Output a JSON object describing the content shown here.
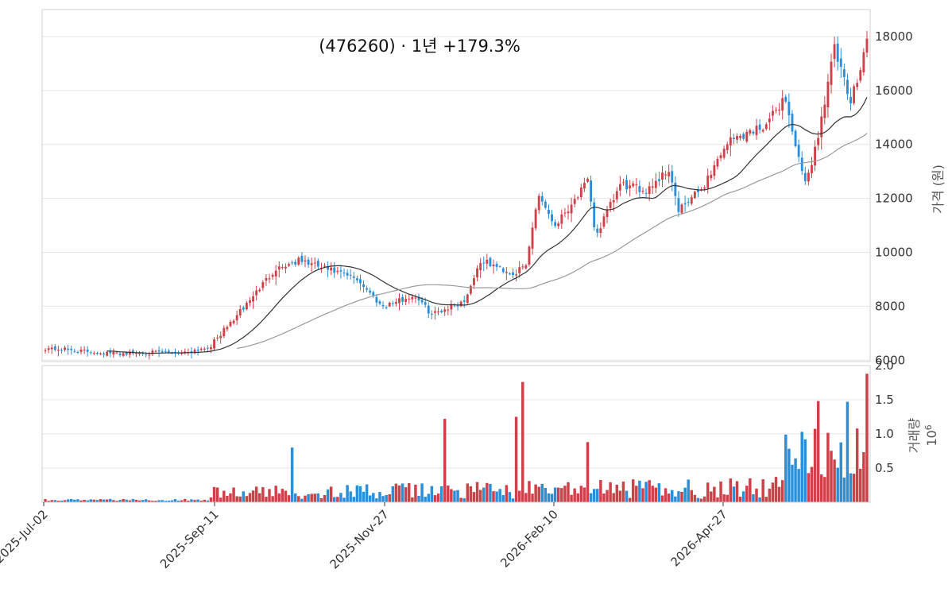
{
  "chart_data": {
    "type": "candlestick",
    "title": "(476260)  ·  1년 +179.3%",
    "x_tick_labels": [
      "2025-Jul-02",
      "2025-Sep-11",
      "2025-Nov-27",
      "2026-Feb-10",
      "2026-Apr-27"
    ],
    "price_panel": {
      "ylabel": "가격 (원)",
      "ylim": [
        5950,
        19000
      ],
      "yticks": [
        6000,
        8000,
        10000,
        12000,
        14000,
        16000,
        18000
      ],
      "grid": true,
      "up_color": "#d04048",
      "down_color": "#2a8fd8",
      "ma_short_color": "#333333",
      "ma_long_color": "#999999",
      "approx_close_trajectory": [
        {
          "t": 0.0,
          "close": 6450
        },
        {
          "t": 0.08,
          "close": 6250
        },
        {
          "t": 0.17,
          "close": 6300
        },
        {
          "t": 0.2,
          "close": 6500
        },
        {
          "t": 0.24,
          "close": 7900
        },
        {
          "t": 0.28,
          "close": 9400
        },
        {
          "t": 0.31,
          "close": 9700
        },
        {
          "t": 0.38,
          "close": 9000
        },
        {
          "t": 0.41,
          "close": 8000
        },
        {
          "t": 0.45,
          "close": 8400
        },
        {
          "t": 0.47,
          "close": 7700
        },
        {
          "t": 0.51,
          "close": 8200
        },
        {
          "t": 0.53,
          "close": 9700
        },
        {
          "t": 0.57,
          "close": 9200
        },
        {
          "t": 0.585,
          "close": 9500
        },
        {
          "t": 0.6,
          "close": 12200
        },
        {
          "t": 0.62,
          "close": 11000
        },
        {
          "t": 0.66,
          "close": 12600
        },
        {
          "t": 0.67,
          "close": 10600
        },
        {
          "t": 0.7,
          "close": 12500
        },
        {
          "t": 0.73,
          "close": 12300
        },
        {
          "t": 0.76,
          "close": 13100
        },
        {
          "t": 0.77,
          "close": 11500
        },
        {
          "t": 0.8,
          "close": 12400
        },
        {
          "t": 0.83,
          "close": 14100
        },
        {
          "t": 0.86,
          "close": 14500
        },
        {
          "t": 0.88,
          "close": 14800
        },
        {
          "t": 0.9,
          "close": 15800
        },
        {
          "t": 0.92,
          "close": 13000
        },
        {
          "t": 0.925,
          "close": 12500
        },
        {
          "t": 0.94,
          "close": 14200
        },
        {
          "t": 0.96,
          "close": 17600
        },
        {
          "t": 0.98,
          "close": 15500
        },
        {
          "t": 1.0,
          "close": 17900
        }
      ]
    },
    "volume_panel": {
      "ylabel": "거래량",
      "scale_label": "10",
      "scale_exponent": "6",
      "ylim": [
        0,
        2.0
      ],
      "yticks": [
        0.5,
        1.0,
        1.5,
        2.0
      ],
      "ytick_labels": [
        "0.5",
        "1.0",
        "1.5",
        "2.0"
      ],
      "unit_multiplier": 1000000,
      "spikes": [
        {
          "t": 0.3,
          "value": 0.8
        },
        {
          "t": 0.485,
          "value": 1.22
        },
        {
          "t": 0.575,
          "value": 1.25
        },
        {
          "t": 0.58,
          "value": 1.76
        },
        {
          "t": 0.66,
          "value": 0.88
        },
        {
          "t": 0.92,
          "value": 1.03
        },
        {
          "t": 0.94,
          "value": 1.48
        },
        {
          "t": 0.975,
          "value": 1.47
        },
        {
          "t": 1.0,
          "value": 1.88
        }
      ]
    }
  }
}
